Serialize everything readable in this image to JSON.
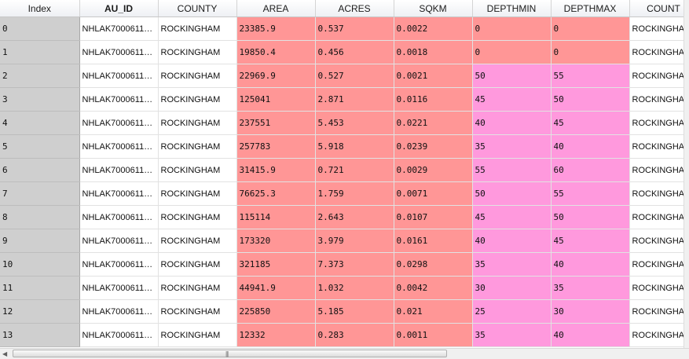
{
  "headers": [
    "Index",
    "AU_ID",
    "COUNTY",
    "AREA",
    "ACRES",
    "SQKM",
    "DEPTHMIN",
    "DEPTHMAX",
    "COUNT"
  ],
  "sorted_column": 1,
  "colors": {
    "area_fill": "#ff9696",
    "acres_fill": "#ff9696",
    "sqkm_fill": "#ff9696",
    "depth_fill_high": "#ff99dd",
    "depth_fill_low": "#ff98bb",
    "depth_zero_fill": "#ff9696",
    "index_fill": "#cfcfcf"
  },
  "rows": [
    {
      "index": "0",
      "au_id": "NHLAK7000611…",
      "county": "ROCKINGHAM",
      "area": "23385.9",
      "acres": "0.537",
      "sqkm": "0.0022",
      "depthmin": "0",
      "depthmax": "0",
      "count": "ROCKINGHA"
    },
    {
      "index": "1",
      "au_id": "NHLAK7000611…",
      "county": "ROCKINGHAM",
      "area": "19850.4",
      "acres": "0.456",
      "sqkm": "0.0018",
      "depthmin": "0",
      "depthmax": "0",
      "count": "ROCKINGHA"
    },
    {
      "index": "2",
      "au_id": "NHLAK7000611…",
      "county": "ROCKINGHAM",
      "area": "22969.9",
      "acres": "0.527",
      "sqkm": "0.0021",
      "depthmin": "50",
      "depthmax": "55",
      "count": "ROCKINGHA"
    },
    {
      "index": "3",
      "au_id": "NHLAK7000611…",
      "county": "ROCKINGHAM",
      "area": "125041",
      "acres": "2.871",
      "sqkm": "0.0116",
      "depthmin": "45",
      "depthmax": "50",
      "count": "ROCKINGHA"
    },
    {
      "index": "4",
      "au_id": "NHLAK7000611…",
      "county": "ROCKINGHAM",
      "area": "237551",
      "acres": "5.453",
      "sqkm": "0.0221",
      "depthmin": "40",
      "depthmax": "45",
      "count": "ROCKINGHA"
    },
    {
      "index": "5",
      "au_id": "NHLAK7000611…",
      "county": "ROCKINGHAM",
      "area": "257783",
      "acres": "5.918",
      "sqkm": "0.0239",
      "depthmin": "35",
      "depthmax": "40",
      "count": "ROCKINGHA"
    },
    {
      "index": "6",
      "au_id": "NHLAK7000611…",
      "county": "ROCKINGHAM",
      "area": "31415.9",
      "acres": "0.721",
      "sqkm": "0.0029",
      "depthmin": "55",
      "depthmax": "60",
      "count": "ROCKINGHA"
    },
    {
      "index": "7",
      "au_id": "NHLAK7000611…",
      "county": "ROCKINGHAM",
      "area": "76625.3",
      "acres": "1.759",
      "sqkm": "0.0071",
      "depthmin": "50",
      "depthmax": "55",
      "count": "ROCKINGHA"
    },
    {
      "index": "8",
      "au_id": "NHLAK7000611…",
      "county": "ROCKINGHAM",
      "area": "115114",
      "acres": "2.643",
      "sqkm": "0.0107",
      "depthmin": "45",
      "depthmax": "50",
      "count": "ROCKINGHA"
    },
    {
      "index": "9",
      "au_id": "NHLAK7000611…",
      "county": "ROCKINGHAM",
      "area": "173320",
      "acres": "3.979",
      "sqkm": "0.0161",
      "depthmin": "40",
      "depthmax": "45",
      "count": "ROCKINGHA"
    },
    {
      "index": "10",
      "au_id": "NHLAK7000611…",
      "county": "ROCKINGHAM",
      "area": "321185",
      "acres": "7.373",
      "sqkm": "0.0298",
      "depthmin": "35",
      "depthmax": "40",
      "count": "ROCKINGHA"
    },
    {
      "index": "11",
      "au_id": "NHLAK7000611…",
      "county": "ROCKINGHAM",
      "area": "44941.9",
      "acres": "1.032",
      "sqkm": "0.0042",
      "depthmin": "30",
      "depthmax": "35",
      "count": "ROCKINGHA"
    },
    {
      "index": "12",
      "au_id": "NHLAK7000611…",
      "county": "ROCKINGHAM",
      "area": "225850",
      "acres": "5.185",
      "sqkm": "0.021",
      "depthmin": "25",
      "depthmax": "30",
      "count": "ROCKINGHA"
    },
    {
      "index": "13",
      "au_id": "NHLAK7000611…",
      "county": "ROCKINGHAM",
      "area": "12332",
      "acres": "0.283",
      "sqkm": "0.0011",
      "depthmin": "35",
      "depthmax": "40",
      "count": "ROCKINGHA"
    }
  ],
  "scrollbar": {
    "left_arrow": "◀",
    "right_arrow": "▶",
    "grip": "|||"
  }
}
